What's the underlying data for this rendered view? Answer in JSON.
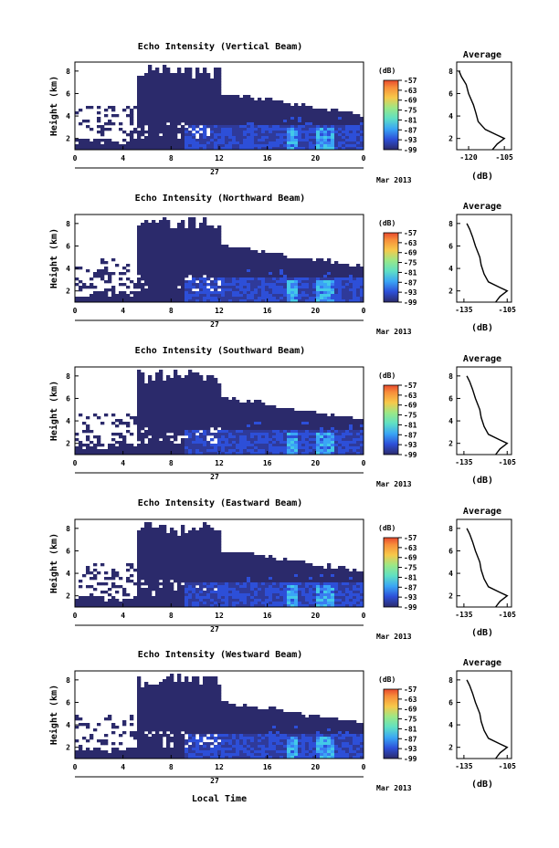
{
  "figure": {
    "xlabel": "Local Time",
    "date_label": "Mar 2013",
    "day_label": "27",
    "colorbar_title": "(dB)",
    "avg_title": "Average",
    "avg_xlabel": "(dB)",
    "colormap": [
      "#2b2a6b",
      "#2f3a9a",
      "#2d4fd8",
      "#3a7cf0",
      "#3aa5f5",
      "#43c9e8",
      "#5fe0c4",
      "#9ae887",
      "#d9e85a",
      "#f7c94a",
      "#f78d3a",
      "#e8492e"
    ]
  },
  "chart_data": [
    {
      "type": "heatmap",
      "title": "Echo Intensity (Vertical Beam)",
      "ylabel": "Height (km)",
      "xlabel": "",
      "x_ticks": [
        "0",
        "4",
        "8",
        "12",
        "16",
        "20",
        "0"
      ],
      "y_ticks": [
        "2",
        "4",
        "6",
        "8"
      ],
      "colorbar_ticks": [
        "-57",
        "-63",
        "-69",
        "-75",
        "-81",
        "-87",
        "-93",
        "-99"
      ],
      "average": {
        "x_ticks": [
          "-120",
          "-105"
        ],
        "y_ticks": [
          "2",
          "4",
          "6",
          "8"
        ],
        "profile": [
          [
            -110,
            1.0
          ],
          [
            -108,
            1.5
          ],
          [
            -105,
            2.0
          ],
          [
            -108,
            2.3
          ],
          [
            -113,
            2.8
          ],
          [
            -116,
            3.5
          ],
          [
            -117,
            4.3
          ],
          [
            -118,
            5.0
          ],
          [
            -120,
            6.0
          ],
          [
            -121,
            6.8
          ],
          [
            -123,
            7.5
          ],
          [
            -124,
            8.0
          ]
        ]
      }
    },
    {
      "type": "heatmap",
      "title": "Echo Intensity (Northward Beam)",
      "ylabel": "Height (km)",
      "xlabel": "",
      "x_ticks": [
        "0",
        "4",
        "8",
        "12",
        "16",
        "20",
        "0"
      ],
      "y_ticks": [
        "2",
        "4",
        "6",
        "8"
      ],
      "colorbar_ticks": [
        "-57",
        "-63",
        "-69",
        "-75",
        "-81",
        "-87",
        "-93",
        "-99"
      ],
      "average": {
        "x_ticks": [
          "-135",
          "-105"
        ],
        "y_ticks": [
          "2",
          "4",
          "6",
          "8"
        ],
        "profile": [
          [
            -113,
            1.0
          ],
          [
            -110,
            1.5
          ],
          [
            -105,
            2.0
          ],
          [
            -110,
            2.3
          ],
          [
            -118,
            2.8
          ],
          [
            -121,
            3.5
          ],
          [
            -123,
            4.3
          ],
          [
            -124,
            5.0
          ],
          [
            -127,
            6.0
          ],
          [
            -129,
            6.8
          ],
          [
            -131,
            7.5
          ],
          [
            -133,
            8.0
          ]
        ]
      }
    },
    {
      "type": "heatmap",
      "title": "Echo Intensity (Southward Beam)",
      "ylabel": "Height (km)",
      "xlabel": "",
      "x_ticks": [
        "0",
        "4",
        "8",
        "12",
        "16",
        "20",
        "0"
      ],
      "y_ticks": [
        "2",
        "4",
        "6",
        "8"
      ],
      "colorbar_ticks": [
        "-57",
        "-63",
        "-69",
        "-75",
        "-81",
        "-87",
        "-93",
        "-99"
      ],
      "average": {
        "x_ticks": [
          "-135",
          "-105"
        ],
        "y_ticks": [
          "2",
          "4",
          "6",
          "8"
        ],
        "profile": [
          [
            -113,
            1.0
          ],
          [
            -110,
            1.5
          ],
          [
            -105,
            2.0
          ],
          [
            -110,
            2.3
          ],
          [
            -118,
            2.8
          ],
          [
            -121,
            3.5
          ],
          [
            -123,
            4.3
          ],
          [
            -124,
            5.0
          ],
          [
            -127,
            6.0
          ],
          [
            -129,
            6.8
          ],
          [
            -131,
            7.5
          ],
          [
            -133,
            8.0
          ]
        ]
      }
    },
    {
      "type": "heatmap",
      "title": "Echo Intensity (Eastward Beam)",
      "ylabel": "Height (km)",
      "xlabel": "",
      "x_ticks": [
        "0",
        "4",
        "8",
        "12",
        "16",
        "20",
        "0"
      ],
      "y_ticks": [
        "2",
        "4",
        "6",
        "8"
      ],
      "colorbar_ticks": [
        "-57",
        "-63",
        "-69",
        "-75",
        "-81",
        "-87",
        "-93",
        "-99"
      ],
      "average": {
        "x_ticks": [
          "-135",
          "-105"
        ],
        "y_ticks": [
          "2",
          "4",
          "6",
          "8"
        ],
        "profile": [
          [
            -113,
            1.0
          ],
          [
            -110,
            1.5
          ],
          [
            -105,
            2.0
          ],
          [
            -110,
            2.3
          ],
          [
            -118,
            2.8
          ],
          [
            -121,
            3.5
          ],
          [
            -123,
            4.3
          ],
          [
            -124,
            5.0
          ],
          [
            -127,
            6.0
          ],
          [
            -129,
            6.8
          ],
          [
            -131,
            7.5
          ],
          [
            -133,
            8.0
          ]
        ]
      }
    },
    {
      "type": "heatmap",
      "title": "Echo Intensity (Westward Beam)",
      "ylabel": "Height (km)",
      "xlabel": "Local Time",
      "x_ticks": [
        "0",
        "4",
        "8",
        "12",
        "16",
        "20",
        "0"
      ],
      "y_ticks": [
        "2",
        "4",
        "6",
        "8"
      ],
      "colorbar_ticks": [
        "-57",
        "-63",
        "-69",
        "-75",
        "-81",
        "-87",
        "-93",
        "-99"
      ],
      "average": {
        "x_ticks": [
          "-135",
          "-105"
        ],
        "y_ticks": [
          "2",
          "4",
          "6",
          "8"
        ],
        "profile": [
          [
            -113,
            1.0
          ],
          [
            -110,
            1.5
          ],
          [
            -105,
            2.0
          ],
          [
            -110,
            2.3
          ],
          [
            -118,
            2.8
          ],
          [
            -121,
            3.5
          ],
          [
            -123,
            4.3
          ],
          [
            -124,
            5.0
          ],
          [
            -127,
            6.0
          ],
          [
            -129,
            6.8
          ],
          [
            -131,
            7.5
          ],
          [
            -133,
            8.0
          ]
        ]
      }
    }
  ]
}
